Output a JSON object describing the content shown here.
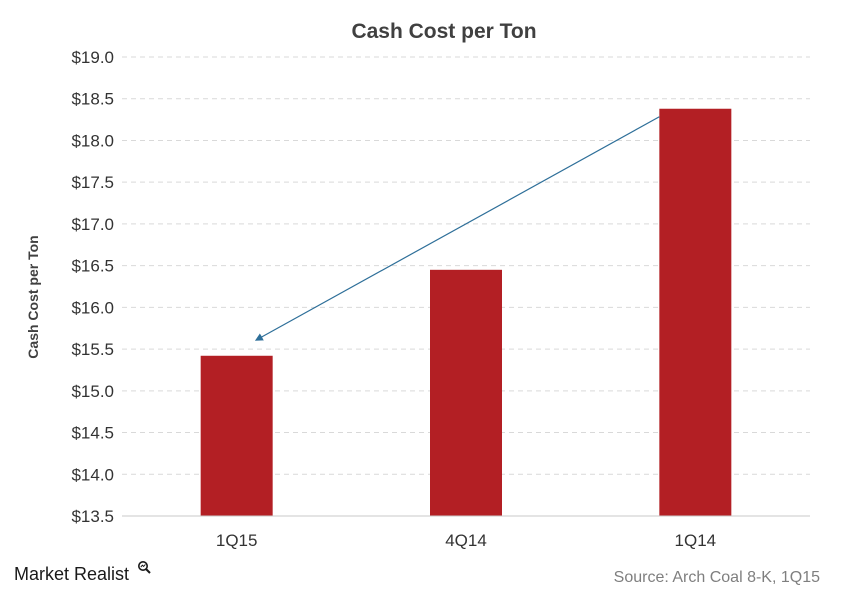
{
  "chart_data": {
    "type": "bar",
    "title": "Cash Cost per Ton",
    "xlabel": "",
    "ylabel": "Cash Cost per Ton",
    "categories": [
      "1Q15",
      "4Q14",
      "1Q14"
    ],
    "values": [
      15.42,
      16.45,
      18.38
    ],
    "ylim": [
      13.5,
      19.0
    ],
    "yticks": [
      13.5,
      14.0,
      14.5,
      15.0,
      15.5,
      16.0,
      16.5,
      17.0,
      17.5,
      18.0,
      18.5,
      19.0
    ],
    "ytick_labels": [
      "$13.5",
      "$14.0",
      "$14.5",
      "$15.0",
      "$15.5",
      "$16.0",
      "$16.5",
      "$17.0",
      "$17.5",
      "$18.0",
      "$18.5",
      "$19.0"
    ],
    "grid": true,
    "bar_color": "#b31f24",
    "annotation": {
      "type": "arrow",
      "from_category": "1Q14",
      "to_category": "1Q15",
      "color": "#2e6f99"
    }
  },
  "source": "Source: Arch Coal 8-K, 1Q15",
  "brand": {
    "name": "Market Realist",
    "icon": "magnifier-icon"
  }
}
